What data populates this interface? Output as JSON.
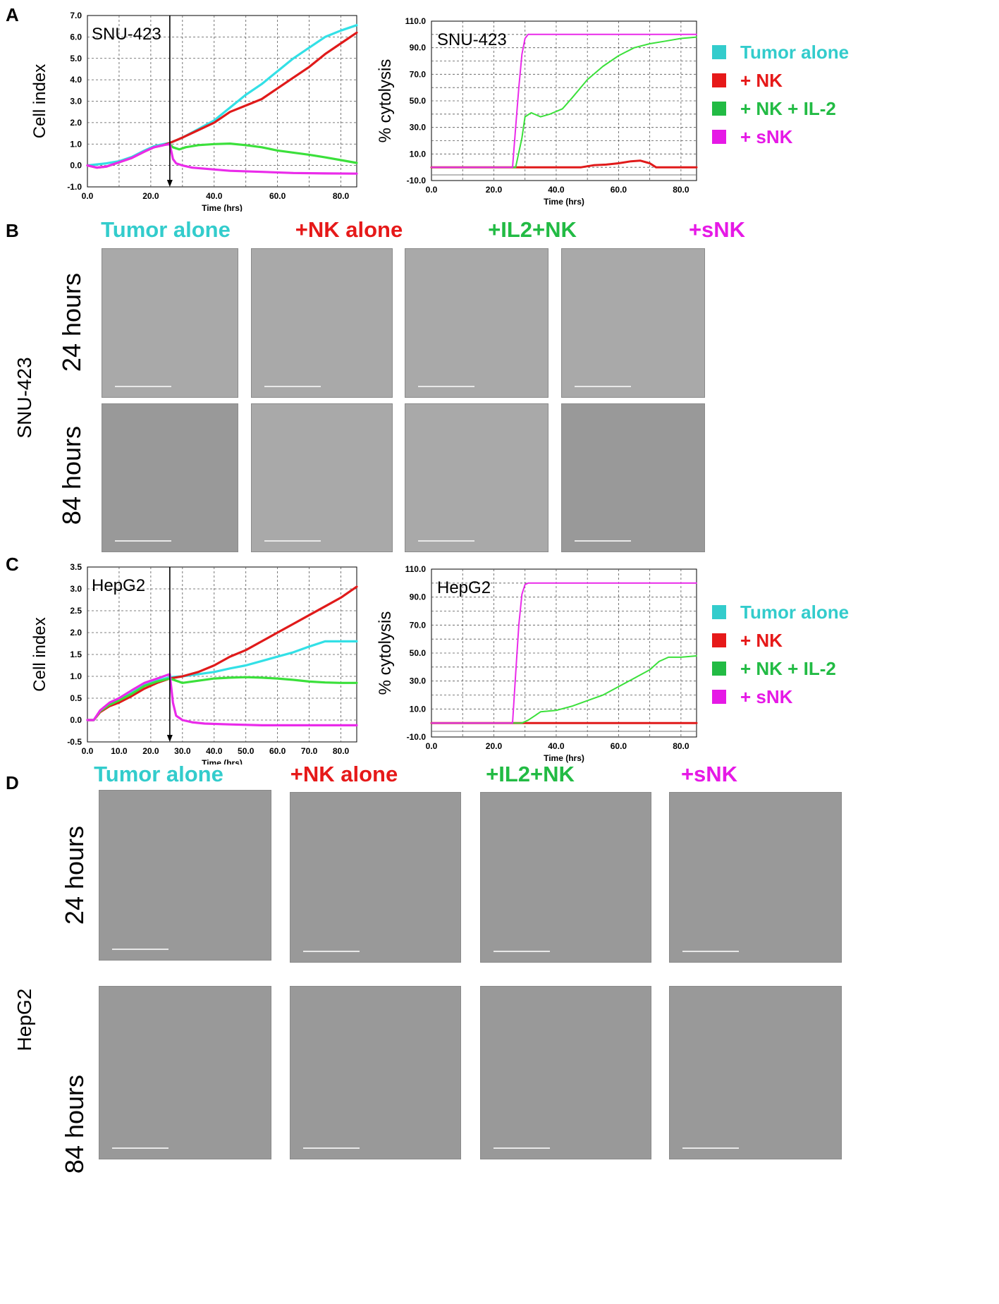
{
  "panels": {
    "A": "A",
    "B": "B",
    "C": "C",
    "D": "D"
  },
  "colors": {
    "tumor": "#33e0e6",
    "nk": "#e01a1a",
    "nk_il2": "#3be03b",
    "snk": "#ea2bea",
    "label_tumor": "#33cccc",
    "label_nk": "#e61919",
    "label_il2": "#22bb44",
    "label_snk": "#e619e6"
  },
  "legend": [
    {
      "label": "Tumor alone",
      "color": "#33cccc"
    },
    {
      "label": "+ NK",
      "color": "#e61919"
    },
    {
      "label": "+ NK + IL-2",
      "color": "#22bb44"
    },
    {
      "label": "+ sNK",
      "color": "#e619e6"
    }
  ],
  "image_grid": {
    "columns": [
      {
        "label": "Tumor alone",
        "color": "#33cccc"
      },
      {
        "label": "+NK alone",
        "color": "#e61919"
      },
      {
        "label": "+IL2+NK",
        "color": "#22bb44"
      },
      {
        "label": "+sNK",
        "color": "#e619e6"
      }
    ],
    "rows": [
      "24 hours",
      "84 hours"
    ],
    "cell_line_B": "SNU-423",
    "cell_line_D": "HepG2"
  },
  "chart_data": [
    {
      "id": "A-left",
      "type": "line",
      "title": "SNU-423",
      "xlabel": "Time (hrs)",
      "ylabel": "Cell index",
      "xlim": [
        0,
        85
      ],
      "ylim": [
        -1,
        7
      ],
      "xticks": [
        0,
        20,
        40,
        60,
        80
      ],
      "xtick_labels": [
        "0.0",
        "20.0",
        "40.0",
        "60.0",
        "80.0"
      ],
      "xgrid": [
        10,
        20,
        30,
        40,
        50,
        60,
        70,
        80
      ],
      "yticks": [
        -1,
        0,
        1,
        2,
        3,
        4,
        5,
        6,
        7
      ],
      "ytick_labels": [
        "-1.0",
        "0.0",
        "1.0",
        "2.0",
        "3.0",
        "4.0",
        "5.0",
        "6.0",
        "7.0"
      ],
      "marker_x": 26,
      "grid": true,
      "series": [
        {
          "key": "tumor",
          "x": [
            0,
            3,
            6,
            10,
            14,
            18,
            21,
            24,
            26,
            30,
            35,
            40,
            45,
            50,
            55,
            60,
            65,
            70,
            75,
            80,
            85
          ],
          "y": [
            0,
            0.05,
            0.1,
            0.2,
            0.4,
            0.7,
            0.9,
            1.0,
            1.05,
            1.3,
            1.7,
            2.1,
            2.7,
            3.3,
            3.8,
            4.4,
            5.0,
            5.5,
            6.0,
            6.3,
            6.55
          ]
        },
        {
          "key": "nk",
          "x": [
            0,
            3,
            6,
            10,
            14,
            18,
            21,
            24,
            26,
            30,
            35,
            40,
            45,
            50,
            55,
            60,
            65,
            70,
            75,
            80,
            85
          ],
          "y": [
            0,
            -0.1,
            -0.05,
            0.15,
            0.35,
            0.65,
            0.85,
            0.95,
            1.05,
            1.3,
            1.65,
            2.0,
            2.5,
            2.8,
            3.1,
            3.6,
            4.1,
            4.6,
            5.2,
            5.7,
            6.2
          ]
        },
        {
          "key": "nk_il2",
          "x": [
            26,
            27,
            29,
            31,
            35,
            40,
            45,
            50,
            55,
            60,
            65,
            70,
            75,
            80,
            85
          ],
          "y": [
            1.0,
            0.85,
            0.75,
            0.85,
            0.95,
            1.0,
            1.02,
            0.95,
            0.85,
            0.7,
            0.6,
            0.5,
            0.38,
            0.25,
            0.12
          ]
        },
        {
          "key": "snk",
          "x": [
            0,
            3,
            6,
            10,
            14,
            18,
            21,
            24,
            26,
            27,
            28,
            30,
            33,
            37,
            45,
            55,
            65,
            75,
            85
          ],
          "y": [
            0,
            -0.1,
            -0.05,
            0.15,
            0.35,
            0.65,
            0.85,
            0.95,
            1.0,
            0.3,
            0.1,
            0.0,
            -0.1,
            -0.15,
            -0.25,
            -0.3,
            -0.35,
            -0.37,
            -0.38
          ]
        }
      ]
    },
    {
      "id": "A-right",
      "type": "line",
      "title": "SNU-423",
      "xlabel": "Time (hrs)",
      "ylabel": "% cytolysis",
      "xlim": [
        0,
        85
      ],
      "ylim": [
        -10,
        110
      ],
      "xticks": [
        0,
        20,
        40,
        60,
        80
      ],
      "xtick_labels": [
        "0.0",
        "20.0",
        "40.0",
        "60.0",
        "80.0"
      ],
      "xgrid": [
        10,
        20,
        30,
        40,
        50,
        60,
        70,
        80
      ],
      "yticks": [
        -10,
        10,
        30,
        50,
        70,
        90,
        110
      ],
      "ytick_labels": [
        "-10.0",
        "10.0",
        "30.0",
        "50.0",
        "70.0",
        "90.0",
        "110.0"
      ],
      "ygrid": [
        -10,
        0,
        10,
        20,
        30,
        40,
        50,
        60,
        70,
        80,
        90,
        100,
        110
      ],
      "grid": true,
      "series": [
        {
          "key": "nk",
          "x": [
            0,
            10,
            20,
            30,
            40,
            48,
            52,
            56,
            60,
            64,
            67,
            70,
            72,
            75,
            80,
            85
          ],
          "y": [
            0,
            0,
            0,
            0,
            0,
            0,
            1.5,
            2,
            3,
            4.5,
            5,
            3,
            0,
            0,
            0,
            0
          ]
        },
        {
          "key": "nk_il2",
          "x": [
            0,
            27,
            29,
            30,
            32,
            35,
            38,
            42,
            45,
            50,
            55,
            60,
            65,
            70,
            75,
            80,
            85
          ],
          "y": [
            0,
            0,
            22,
            38,
            41,
            38,
            40,
            44,
            52,
            66,
            76,
            84,
            90,
            93,
            95,
            97,
            98
          ]
        },
        {
          "key": "snk",
          "x": [
            0,
            26,
            27,
            28,
            29,
            30,
            31,
            40,
            50,
            60,
            70,
            80,
            85
          ],
          "y": [
            0,
            0,
            30,
            60,
            85,
            97,
            100,
            100,
            100,
            100,
            100,
            100,
            100
          ]
        }
      ]
    },
    {
      "id": "C-left",
      "type": "line",
      "title": "HepG2",
      "xlabel": "Time (hrs)",
      "ylabel": "Cell index",
      "xlim": [
        0,
        85
      ],
      "ylim": [
        -0.5,
        3.5
      ],
      "xticks": [
        0,
        10,
        20,
        30,
        40,
        50,
        60,
        70,
        80
      ],
      "xtick_labels": [
        "0.0",
        "10.0",
        "20.0",
        "30.0",
        "40.0",
        "50.0",
        "60.0",
        "70.0",
        "80.0"
      ],
      "xgrid": [
        10,
        20,
        30,
        40,
        50,
        60,
        70,
        80
      ],
      "yticks": [
        -0.5,
        0,
        0.5,
        1,
        1.5,
        2,
        2.5,
        3,
        3.5
      ],
      "ytick_labels": [
        "-0.5",
        "0.0",
        "0.5",
        "1.0",
        "1.5",
        "2.0",
        "2.5",
        "3.0",
        "3.5"
      ],
      "marker_x": 26,
      "grid": true,
      "series": [
        {
          "key": "tumor",
          "x": [
            0,
            2,
            4,
            7,
            10,
            14,
            18,
            22,
            26,
            30,
            35,
            40,
            45,
            50,
            55,
            60,
            65,
            70,
            75,
            80,
            85
          ],
          "y": [
            0,
            0,
            0.2,
            0.38,
            0.5,
            0.65,
            0.8,
            0.9,
            0.98,
            1.0,
            1.05,
            1.1,
            1.18,
            1.25,
            1.35,
            1.45,
            1.55,
            1.68,
            1.8,
            1.8,
            1.8
          ]
        },
        {
          "key": "nk",
          "x": [
            0,
            2,
            4,
            7,
            10,
            14,
            18,
            22,
            26,
            30,
            35,
            40,
            45,
            50,
            55,
            60,
            65,
            70,
            75,
            80,
            85
          ],
          "y": [
            0,
            0,
            0.18,
            0.32,
            0.4,
            0.55,
            0.72,
            0.85,
            0.95,
            1.0,
            1.1,
            1.25,
            1.45,
            1.6,
            1.8,
            2.0,
            2.2,
            2.4,
            2.6,
            2.8,
            3.05
          ]
        },
        {
          "key": "nk_il2",
          "x": [
            0,
            2,
            4,
            7,
            10,
            14,
            18,
            22,
            26,
            28,
            30,
            35,
            40,
            45,
            50,
            55,
            60,
            65,
            70,
            75,
            80,
            85
          ],
          "y": [
            0,
            0,
            0.2,
            0.35,
            0.45,
            0.6,
            0.78,
            0.88,
            0.95,
            0.9,
            0.85,
            0.9,
            0.95,
            0.97,
            0.98,
            0.97,
            0.95,
            0.92,
            0.88,
            0.86,
            0.85,
            0.85
          ]
        },
        {
          "key": "snk",
          "x": [
            0,
            2,
            4,
            7,
            10,
            14,
            18,
            22,
            26,
            27,
            28,
            30,
            33,
            37,
            45,
            55,
            65,
            75,
            85
          ],
          "y": [
            0,
            0,
            0.22,
            0.4,
            0.5,
            0.68,
            0.85,
            0.95,
            1.05,
            0.4,
            0.1,
            0.0,
            -0.05,
            -0.08,
            -0.1,
            -0.12,
            -0.12,
            -0.12,
            -0.12
          ]
        }
      ]
    },
    {
      "id": "C-right",
      "type": "line",
      "title": "HepG2",
      "xlabel": "Time (hrs)",
      "ylabel": "% cytolysis",
      "xlim": [
        0,
        85
      ],
      "ylim": [
        -10,
        110
      ],
      "xticks": [
        0,
        20,
        40,
        60,
        80
      ],
      "xtick_labels": [
        "0.0",
        "20.0",
        "40.0",
        "60.0",
        "80.0"
      ],
      "xgrid": [
        10,
        20,
        30,
        40,
        50,
        60,
        70,
        80
      ],
      "yticks": [
        -10,
        10,
        30,
        50,
        70,
        90,
        110
      ],
      "ytick_labels": [
        "-10.0",
        "10.0",
        "30.0",
        "50.0",
        "70.0",
        "90.0",
        "110.0"
      ],
      "ygrid": [
        -10,
        0,
        10,
        20,
        30,
        40,
        50,
        60,
        70,
        80,
        90,
        100,
        110
      ],
      "grid": true,
      "series": [
        {
          "key": "nk",
          "x": [
            0,
            20,
            29,
            40,
            50,
            60,
            70,
            80,
            85
          ],
          "y": [
            0,
            0,
            0,
            0,
            0,
            0,
            0,
            0,
            0
          ]
        },
        {
          "key": "nk_il2",
          "x": [
            0,
            29,
            31,
            33,
            35,
            40,
            45,
            50,
            55,
            60,
            65,
            70,
            73,
            76,
            80,
            85
          ],
          "y": [
            0,
            0,
            2,
            5,
            8,
            9,
            12,
            16,
            20,
            26,
            32,
            38,
            44,
            47,
            47,
            48
          ]
        },
        {
          "key": "snk",
          "x": [
            0,
            26,
            27,
            28,
            29,
            30,
            31,
            40,
            50,
            60,
            70,
            80,
            85
          ],
          "y": [
            0,
            0,
            35,
            70,
            92,
            99,
            100,
            100,
            100,
            100,
            100,
            100,
            100
          ]
        }
      ]
    }
  ]
}
